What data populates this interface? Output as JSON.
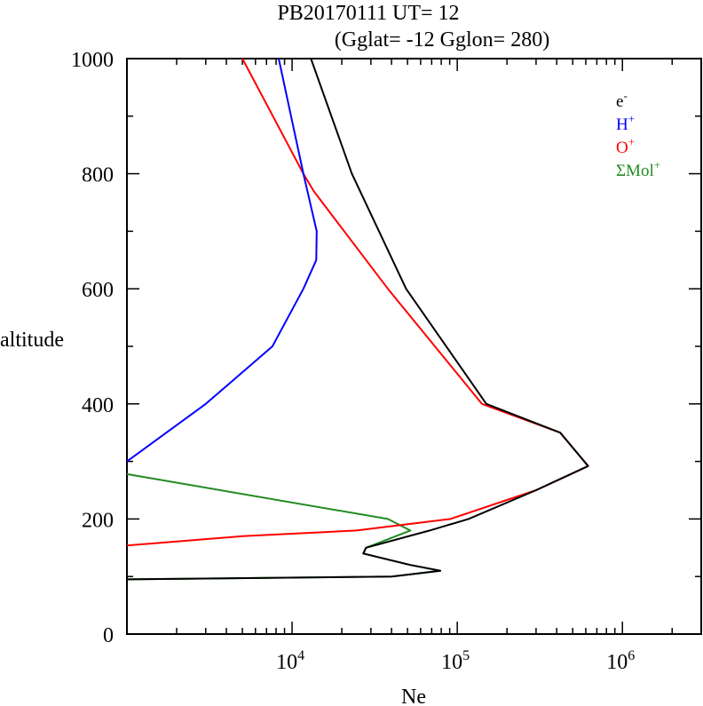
{
  "chart_data": {
    "type": "line",
    "title": "PB20170111   UT=  12",
    "subtitle": "(Gglat= -12   Gglon=  280)",
    "xlabel": "Ne",
    "ylabel": "altitude",
    "xscale": "log",
    "xlim": [
      1000,
      3000000
    ],
    "ylim": [
      0,
      1000
    ],
    "yticks": [
      0,
      200,
      400,
      600,
      800,
      1000
    ],
    "yticklabels": [
      "0",
      "200",
      "400",
      "600",
      "800",
      "1000"
    ],
    "xticks": [
      10000,
      100000,
      1000000
    ],
    "xticklabels": [
      {
        "base": "10",
        "exp": "4"
      },
      {
        "base": "10",
        "exp": "5"
      },
      {
        "base": "10",
        "exp": "6"
      }
    ],
    "legend_position": "top-right",
    "series": [
      {
        "name": "e",
        "sup": "-",
        "color": "#000000",
        "points": [
          [
            1000,
            95
          ],
          [
            40000,
            100
          ],
          [
            79000,
            110
          ],
          [
            52000,
            120
          ],
          [
            27000,
            140
          ],
          [
            28000,
            150
          ],
          [
            68000,
            180
          ],
          [
            117000,
            200
          ],
          [
            300000,
            250
          ],
          [
            620000,
            292
          ],
          [
            420000,
            350
          ],
          [
            150000,
            400
          ],
          [
            49000,
            600
          ],
          [
            23000,
            800
          ],
          [
            13000,
            1000
          ]
        ]
      },
      {
        "name": "H",
        "sup": "+",
        "color": "#0000ff",
        "points": [
          [
            1000,
            300
          ],
          [
            3000,
            400
          ],
          [
            7600,
            500
          ],
          [
            11700,
            600
          ],
          [
            14000,
            650
          ],
          [
            14100,
            700
          ],
          [
            11700,
            800
          ],
          [
            8300,
            1000
          ]
        ]
      },
      {
        "name": "O",
        "sup": "+",
        "color": "#ff0000",
        "points": [
          [
            1000,
            154
          ],
          [
            5000,
            170
          ],
          [
            24500,
            180
          ],
          [
            91000,
            200
          ],
          [
            300000,
            250
          ],
          [
            620000,
            292
          ],
          [
            420000,
            350
          ],
          [
            141000,
            400
          ],
          [
            38000,
            600
          ],
          [
            13500,
            770
          ],
          [
            11700,
            800
          ],
          [
            5000,
            1000
          ]
        ]
      },
      {
        "name": "ΣMol",
        "sup": "+",
        "color": "#228b22",
        "points": [
          [
            1000,
            278
          ],
          [
            38000,
            200
          ],
          [
            52000,
            180
          ],
          [
            28000,
            150
          ],
          [
            27000,
            140
          ],
          [
            52000,
            120
          ],
          [
            79000,
            110
          ],
          [
            40000,
            100
          ],
          [
            1000,
            95
          ]
        ]
      }
    ]
  }
}
